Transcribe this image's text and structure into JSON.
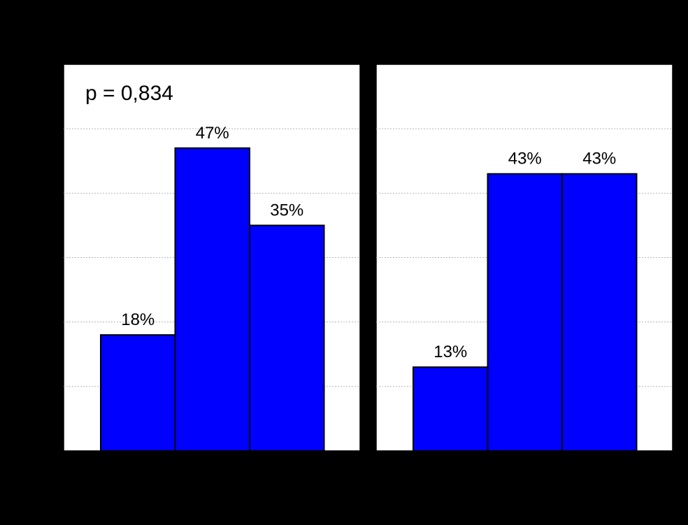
{
  "colors": {
    "background": "#000000",
    "plot_background": "#ffffff",
    "bar_fill": "#0000ff",
    "bar_stroke": "#000000",
    "grid": "#b4b4b4",
    "text": "#000000"
  },
  "annotation": "p = 0,834",
  "chart_data": [
    {
      "type": "bar",
      "title": "",
      "xlabel": "",
      "ylabel": "",
      "categories": [
        "",
        "",
        ""
      ],
      "values": [
        18,
        47,
        35
      ],
      "data_labels": [
        "18%",
        "47%",
        "35%"
      ],
      "ylim": [
        0,
        60
      ],
      "grid": true,
      "annotations": [
        "p = 0,834"
      ]
    },
    {
      "type": "bar",
      "title": "",
      "xlabel": "",
      "ylabel": "",
      "categories": [
        "",
        "",
        ""
      ],
      "values": [
        13,
        43,
        43
      ],
      "data_labels": [
        "13%",
        "43%",
        "43%"
      ],
      "ylim": [
        0,
        60
      ],
      "grid": true
    }
  ]
}
